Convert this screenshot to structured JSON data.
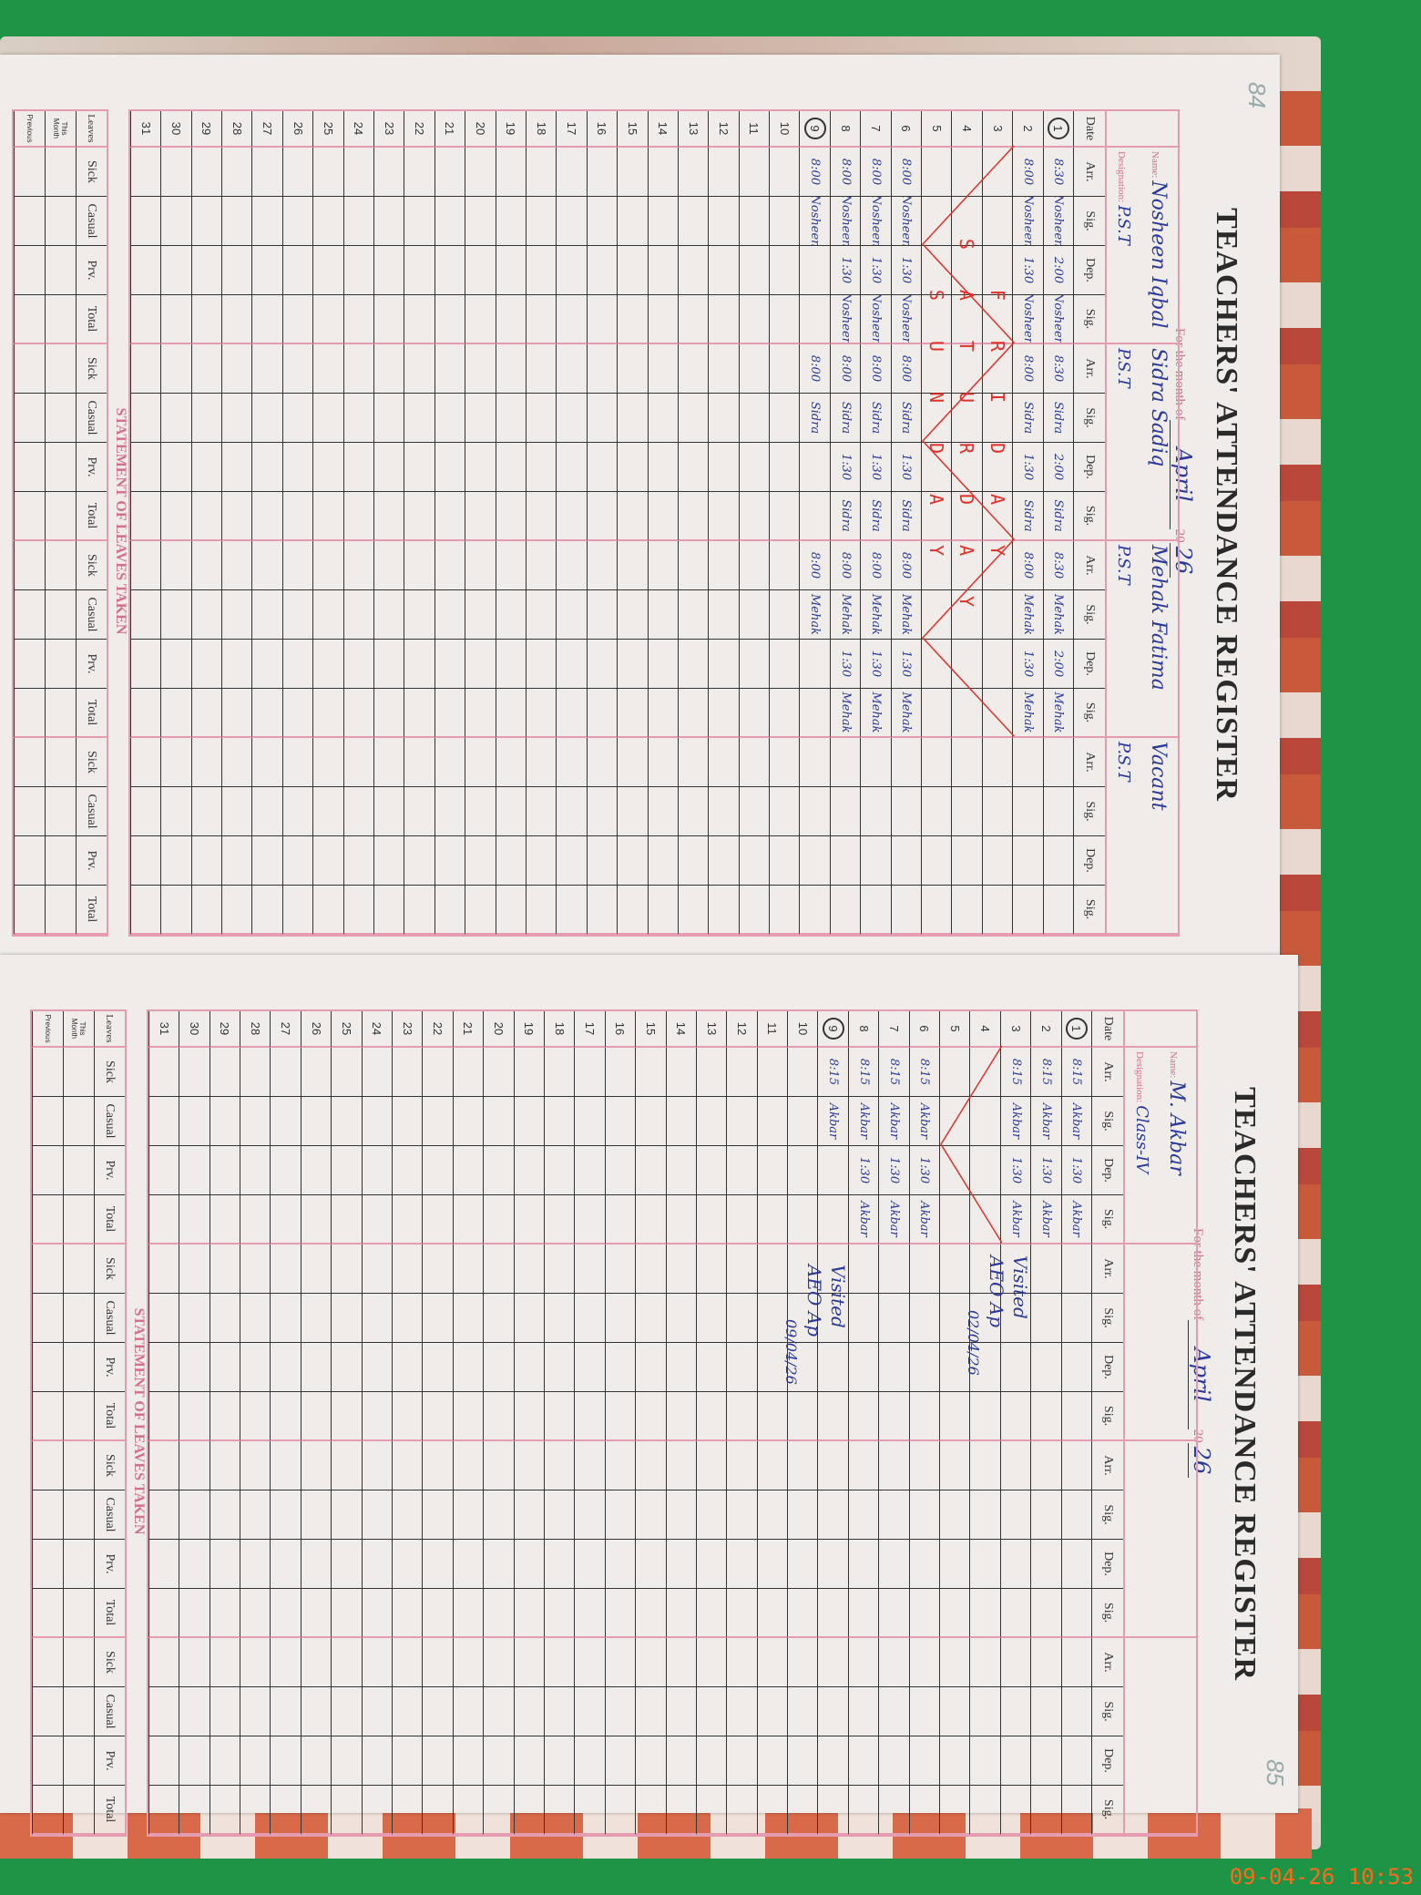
{
  "pages": [
    {
      "page_number": "84",
      "title": "TEACHERS' ATTENDANCE REGISTER",
      "month_label": "For the month of",
      "month": "April",
      "year_prefix": "20",
      "year": "26",
      "name_label": "Name:",
      "designation_label": "Designation:",
      "column_labels": {
        "date": "Date",
        "arr": "Arr.",
        "sig": "Sig.",
        "dep": "Dep."
      },
      "teachers": [
        {
          "name": "Nosheen Iqbal",
          "designation": "P.S.T"
        },
        {
          "name": "Sidra Sadiq",
          "designation": "P.S.T"
        },
        {
          "name": "Mehak Fatima",
          "designation": "P.S.T"
        },
        {
          "name": "Vacant",
          "designation": "P.S.T"
        }
      ],
      "circled_dates": [
        1,
        9
      ],
      "holidays": [
        {
          "date": 3,
          "text": "FRIDAY"
        },
        {
          "date": 4,
          "text": "SATURDAY"
        },
        {
          "date": 5,
          "text": "SUNDAY"
        }
      ],
      "entries": {
        "1": [
          [
            "8:30",
            "Nosheen",
            "2:00",
            "Nosheen"
          ],
          [
            "8:30",
            "Sidra",
            "2:00",
            "Sidra"
          ],
          [
            "8:30",
            "Mehak",
            "2:00",
            "Mehak"
          ]
        ],
        "2": [
          [
            "8:00",
            "Nosheen",
            "1:30",
            "Nosheen"
          ],
          [
            "8:00",
            "Sidra",
            "1:30",
            "Sidra"
          ],
          [
            "8:00",
            "Mehak",
            "1:30",
            "Mehak"
          ]
        ],
        "6": [
          [
            "8:00",
            "Nosheen",
            "1:30",
            "Nosheen"
          ],
          [
            "8:00",
            "Sidra",
            "1:30",
            "Sidra"
          ],
          [
            "8:00",
            "Mehak",
            "1:30",
            "Mehak"
          ]
        ],
        "7": [
          [
            "8:00",
            "Nosheen",
            "1:30",
            "Nosheen"
          ],
          [
            "8:00",
            "Sidra",
            "1:30",
            "Sidra"
          ],
          [
            "8:00",
            "Mehak",
            "1:30",
            "Mehak"
          ]
        ],
        "8": [
          [
            "8:00",
            "Nosheen",
            "1:30",
            "Nosheen"
          ],
          [
            "8:00",
            "Sidra",
            "1:30",
            "Sidra"
          ],
          [
            "8:00",
            "Mehak",
            "1:30",
            "Mehak"
          ]
        ],
        "9": [
          [
            "8:00",
            "Nosheen",
            "",
            ""
          ],
          [
            "8:00",
            "Sidra",
            "",
            ""
          ],
          [
            "8:00",
            "Mehak",
            "",
            ""
          ]
        ]
      },
      "leaves": {
        "title": "STATEMENT OF LEAVES TAKEN",
        "row_header": "Leaves",
        "rows": [
          "This Month",
          "Previous"
        ],
        "columns": [
          "Sick",
          "Casual",
          "Prv.",
          "Total"
        ]
      },
      "visits": []
    },
    {
      "page_number": "85",
      "title": "TEACHERS' ATTENDANCE REGISTER",
      "month_label": "For the month of",
      "month": "April",
      "year_prefix": "20",
      "year": "26",
      "name_label": "Name:",
      "designation_label": "Designation:",
      "column_labels": {
        "date": "Date",
        "arr": "Arr.",
        "sig": "Sig.",
        "dep": "Dep."
      },
      "teachers": [
        {
          "name": "M. Akbar",
          "designation": "Class-IV"
        },
        {
          "name": "",
          "designation": ""
        },
        {
          "name": "",
          "designation": ""
        },
        {
          "name": "",
          "designation": ""
        }
      ],
      "circled_dates": [
        1,
        9
      ],
      "holidays": [
        {
          "date": 4,
          "text": ""
        },
        {
          "date": 5,
          "text": ""
        }
      ],
      "entries": {
        "1": [
          [
            "8:15",
            "Akbar",
            "1:30",
            "Akbar"
          ]
        ],
        "2": [
          [
            "8:15",
            "Akbar",
            "1:30",
            "Akbar"
          ]
        ],
        "3": [
          [
            "8:15",
            "Akbar",
            "1:30",
            "Akbar"
          ]
        ],
        "6": [
          [
            "8:15",
            "Akbar",
            "1:30",
            "Akbar"
          ]
        ],
        "7": [
          [
            "8:15",
            "Akbar",
            "1:30",
            "Akbar"
          ]
        ],
        "8": [
          [
            "8:15",
            "Akbar",
            "1:30",
            "Akbar"
          ]
        ],
        "9": [
          [
            "8:15",
            "Akbar",
            "",
            ""
          ]
        ]
      },
      "leaves": {
        "title": "STATEMENT OF LEAVES TAKEN",
        "row_header": "Leaves",
        "rows": [
          "This Month",
          "Previous"
        ],
        "columns": [
          "Sick",
          "Casual",
          "Prv.",
          "Total"
        ]
      },
      "visits": [
        {
          "text": "Visited",
          "sign": "AEO Ap",
          "date": "02/04/26"
        },
        {
          "text": "Visited",
          "sign": "AEO Ap",
          "date": "09/04/26"
        }
      ]
    }
  ],
  "camera_timestamp": "09-04-26 10:53",
  "colors": {
    "ruling": "#e59bb0",
    "ink": "#2b3a9a",
    "holiday_ink": "#e0302a",
    "background": "#1e9447",
    "timestamp": "#ff6a1a"
  }
}
